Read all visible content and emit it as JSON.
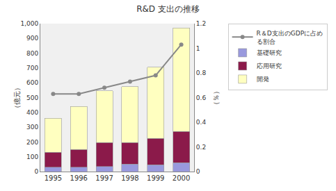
{
  "chart_data": {
    "type": "bar",
    "stacked": true,
    "title": "R&D 支出の推移",
    "ylabel": "（億元）",
    "y2label": "（％）",
    "categories": [
      "1995",
      "1996",
      "1997",
      "1998",
      "1999",
      "2000"
    ],
    "series": [
      {
        "name": "基礎研究",
        "color": "#9999dd",
        "values": [
          30,
          30,
          35,
          50,
          45,
          60
        ]
      },
      {
        "name": "応用研究",
        "color": "#8b1a4a",
        "values": [
          100,
          120,
          160,
          145,
          180,
          210
        ]
      },
      {
        "name": "開発",
        "color": "#ffffc0",
        "values": [
          230,
          290,
          350,
          380,
          480,
          700
        ]
      },
      {
        "name": "R＆D支出のGDPに占め\nる割合",
        "type": "line",
        "axis": "y2",
        "color": "#888888",
        "marker": "circle",
        "values": [
          0.63,
          0.63,
          0.68,
          0.73,
          0.78,
          1.03
        ]
      }
    ],
    "ylim": [
      0,
      1000
    ],
    "yticks": [
      0,
      100,
      200,
      300,
      400,
      500,
      600,
      700,
      800,
      900,
      {
        "value": 1000,
        "label": "1,000"
      }
    ],
    "y2lim": [
      0,
      1.2
    ],
    "y2ticks": [
      0,
      0.2,
      0.4,
      0.6,
      0.8,
      1,
      1.2
    ],
    "grid": false,
    "legend": "right"
  }
}
